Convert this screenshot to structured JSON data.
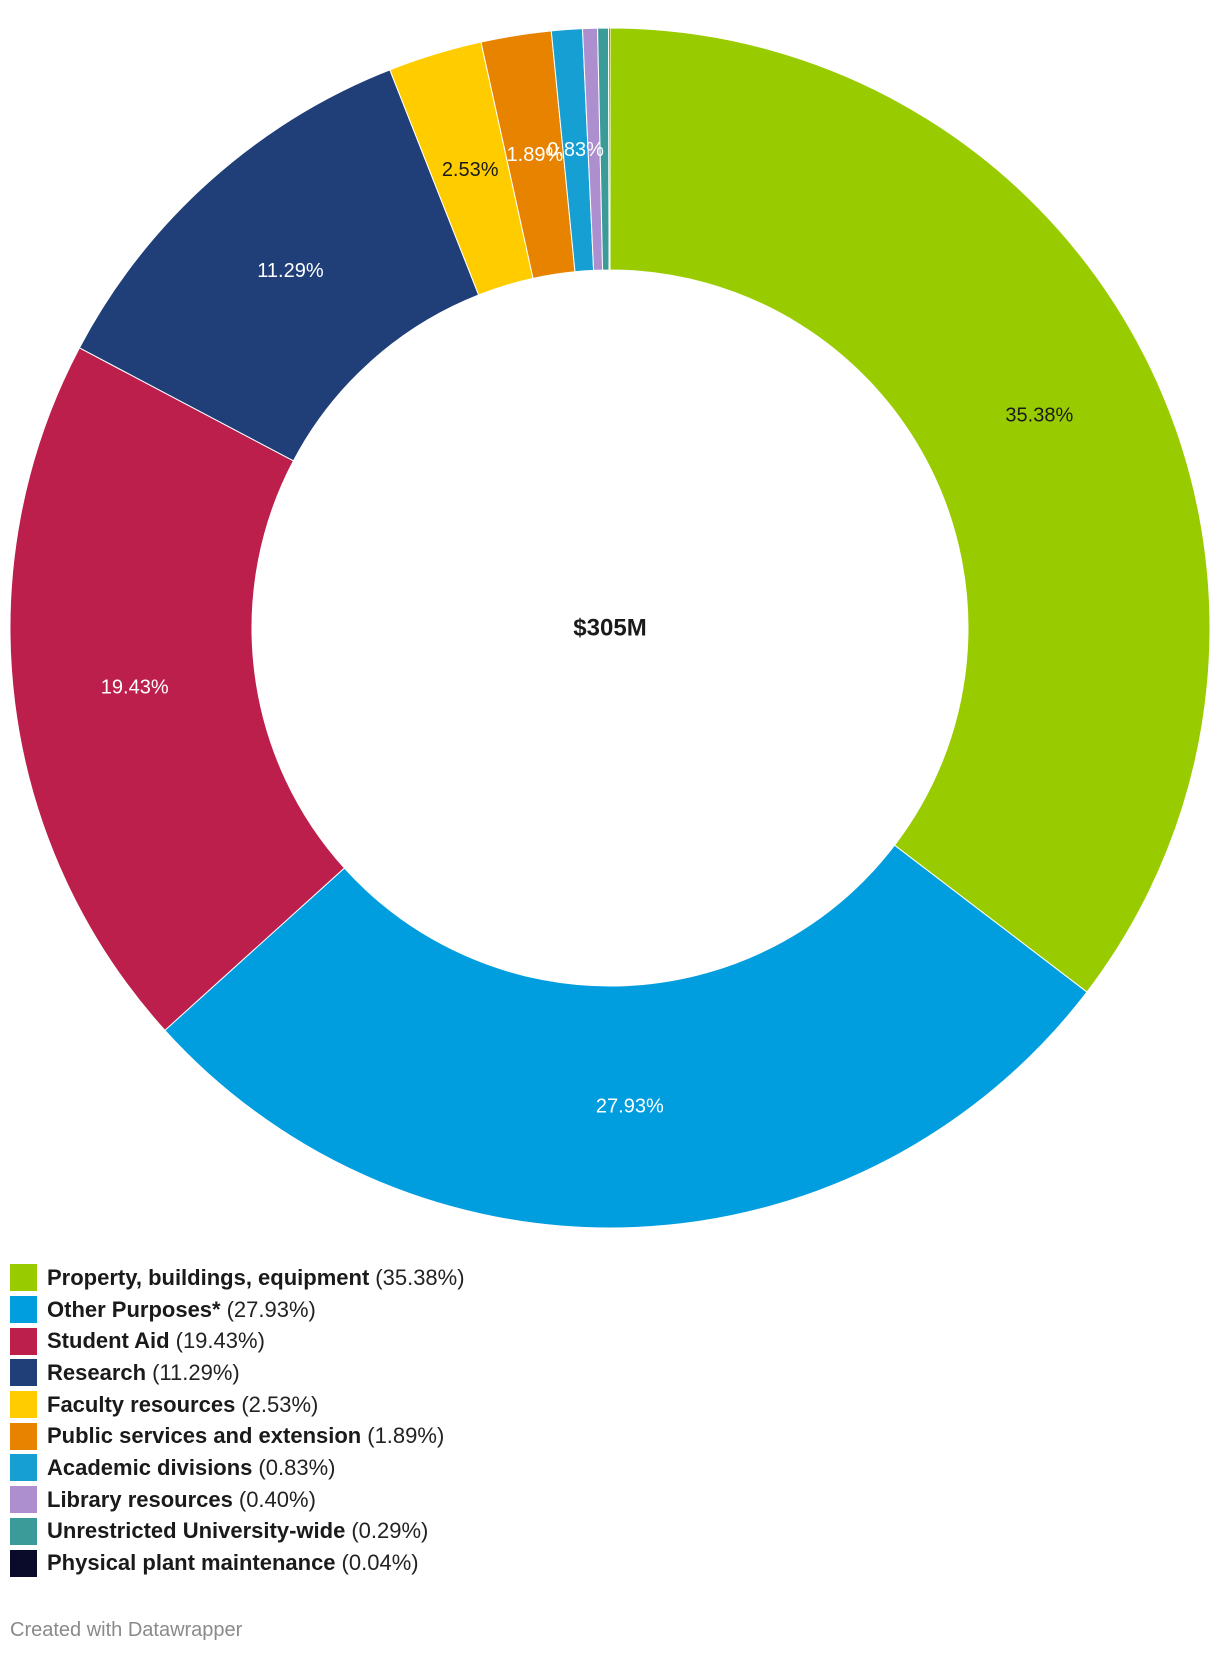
{
  "chart_data": {
    "type": "pie",
    "title": "",
    "center_label": "$305M",
    "series": [
      {
        "name": "Property, buildings, equipment",
        "value": 35.38,
        "label": "35.38%",
        "legend_pct": "(35.38%)",
        "color": "#99cc00",
        "label_color": "#1a1a1a",
        "show_label": true
      },
      {
        "name": "Other Purposes*",
        "value": 27.93,
        "label": "27.93%",
        "legend_pct": "(27.93%)",
        "color": "#009ddf",
        "label_color": "#ffffff",
        "show_label": true
      },
      {
        "name": "Student Aid",
        "value": 19.43,
        "label": "19.43%",
        "legend_pct": "(19.43%)",
        "color": "#bc1f4b",
        "label_color": "#ffffff",
        "show_label": true
      },
      {
        "name": "Research",
        "value": 11.29,
        "label": "11.29%",
        "legend_pct": "(11.29%)",
        "color": "#203f78",
        "label_color": "#ffffff",
        "show_label": true
      },
      {
        "name": "Faculty resources",
        "value": 2.53,
        "label": "2.53%",
        "legend_pct": "(2.53%)",
        "color": "#ffcc00",
        "label_color": "#1a1a1a",
        "show_label": true
      },
      {
        "name": "Public services and extension",
        "value": 1.89,
        "label": "1.89%",
        "legend_pct": "(1.89%)",
        "color": "#e88300",
        "label_color": "#ffffff",
        "show_label": true
      },
      {
        "name": "Academic divisions",
        "value": 0.83,
        "label": "0.83%",
        "legend_pct": "(0.83%)",
        "color": "#169fd3",
        "label_color": "#ffffff",
        "show_label": true
      },
      {
        "name": "Library resources",
        "value": 0.4,
        "label": "",
        "legend_pct": "(0.40%)",
        "color": "#ad8fd0",
        "label_color": "#ffffff",
        "show_label": false
      },
      {
        "name": "Unrestricted University-wide",
        "value": 0.29,
        "label": "",
        "legend_pct": "(0.29%)",
        "color": "#3a9b98",
        "label_color": "#ffffff",
        "show_label": false
      },
      {
        "name": "Physical plant maintenance",
        "value": 0.04,
        "label": "",
        "legend_pct": "(0.04%)",
        "color": "#0a0a2a",
        "label_color": "#ffffff",
        "show_label": false
      }
    ],
    "legend_position": "bottom-left"
  },
  "footer": {
    "credit": "Created with Datawrapper"
  }
}
